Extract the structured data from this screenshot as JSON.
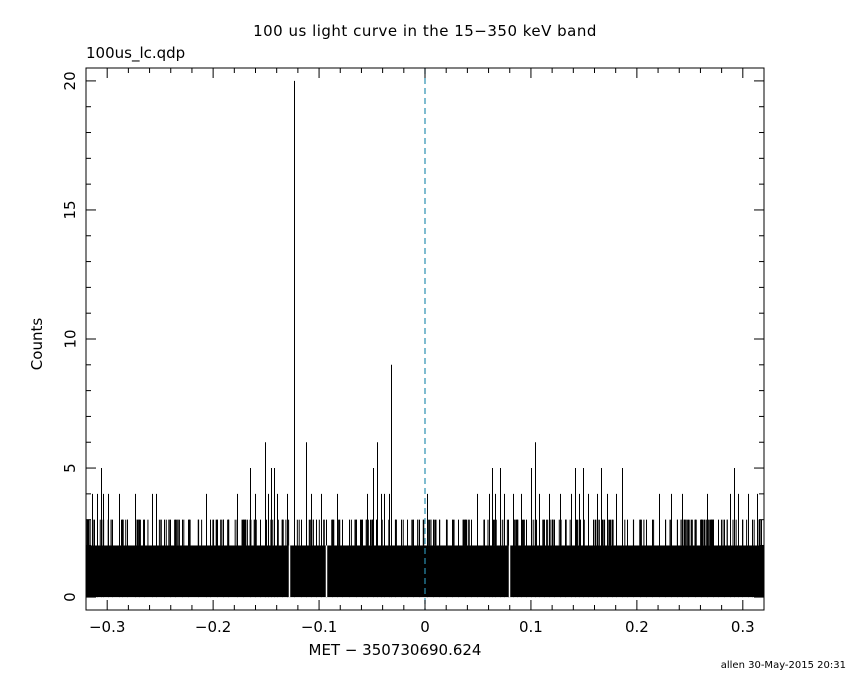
{
  "title": "100 us light curve in the 15−350 keV band",
  "file_label": "100us_lc.qdp",
  "footer": "allen 30-May-2015 20:31",
  "chart_data": {
    "type": "histogram-line",
    "xlabel": "MET − 350730690.624",
    "ylabel": "Counts",
    "xlim": [
      -0.32,
      0.32
    ],
    "ylim": [
      -0.5,
      20.5
    ],
    "xticks": [
      -0.3,
      -0.2,
      -0.1,
      0,
      0.1,
      0.2,
      0.3
    ],
    "xtick_labels": [
      "−0.3",
      "−0.2",
      "−0.1",
      "0",
      "0.1",
      "0.2",
      "0.3"
    ],
    "yticks": [
      0,
      5,
      10,
      15,
      20
    ],
    "ytick_labels": [
      "0",
      "5",
      "10",
      "15",
      "20"
    ],
    "bin_width": 0.0001,
    "baseline_band": [
      0,
      2
    ],
    "colors": {
      "axes": "#000000",
      "data": "#000000",
      "trigger_line": "#2a8fb0"
    },
    "trigger_line_x": 0,
    "peaks": [
      {
        "x": -0.3145,
        "y": 4
      },
      {
        "x": -0.3125,
        "y": 3
      },
      {
        "x": -0.3095,
        "y": 4
      },
      {
        "x": -0.306,
        "y": 5
      },
      {
        "x": -0.3035,
        "y": 4
      },
      {
        "x": -0.299,
        "y": 4
      },
      {
        "x": -0.2955,
        "y": 3
      },
      {
        "x": -0.289,
        "y": 4
      },
      {
        "x": -0.286,
        "y": 3
      },
      {
        "x": -0.281,
        "y": 3
      },
      {
        "x": -0.2735,
        "y": 4
      },
      {
        "x": -0.27,
        "y": 3
      },
      {
        "x": -0.265,
        "y": 3
      },
      {
        "x": -0.258,
        "y": 4
      },
      {
        "x": -0.2535,
        "y": 4
      },
      {
        "x": -0.246,
        "y": 3
      },
      {
        "x": -0.241,
        "y": 3
      },
      {
        "x": -0.236,
        "y": 3
      },
      {
        "x": -0.229,
        "y": 3
      },
      {
        "x": -0.224,
        "y": 3
      },
      {
        "x": -0.214,
        "y": 3
      },
      {
        "x": -0.207,
        "y": 4
      },
      {
        "x": -0.2025,
        "y": 3
      },
      {
        "x": -0.196,
        "y": 3
      },
      {
        "x": -0.191,
        "y": 3
      },
      {
        "x": -0.1855,
        "y": 3
      },
      {
        "x": -0.1775,
        "y": 4
      },
      {
        "x": -0.1715,
        "y": 3
      },
      {
        "x": -0.1655,
        "y": 5
      },
      {
        "x": -0.1605,
        "y": 4
      },
      {
        "x": -0.156,
        "y": 3
      },
      {
        "x": -0.1515,
        "y": 6
      },
      {
        "x": -0.1485,
        "y": 4
      },
      {
        "x": -0.1455,
        "y": 5
      },
      {
        "x": -0.1425,
        "y": 5
      },
      {
        "x": -0.1395,
        "y": 4
      },
      {
        "x": -0.135,
        "y": 3
      },
      {
        "x": -0.1305,
        "y": 4
      },
      {
        "x": -0.1235,
        "y": 20
      },
      {
        "x": -0.1175,
        "y": 3
      },
      {
        "x": -0.112,
        "y": 6
      },
      {
        "x": -0.1075,
        "y": 4
      },
      {
        "x": -0.103,
        "y": 3
      },
      {
        "x": -0.0985,
        "y": 4
      },
      {
        "x": -0.0935,
        "y": 3
      },
      {
        "x": -0.0875,
        "y": 3
      },
      {
        "x": -0.0835,
        "y": 4
      },
      {
        "x": -0.0785,
        "y": 3
      },
      {
        "x": -0.0715,
        "y": 3
      },
      {
        "x": -0.065,
        "y": 3
      },
      {
        "x": -0.059,
        "y": 3
      },
      {
        "x": -0.055,
        "y": 4
      },
      {
        "x": -0.0495,
        "y": 5
      },
      {
        "x": -0.0455,
        "y": 6
      },
      {
        "x": -0.042,
        "y": 4
      },
      {
        "x": -0.0385,
        "y": 4
      },
      {
        "x": -0.034,
        "y": 4
      },
      {
        "x": -0.0325,
        "y": 9
      },
      {
        "x": -0.028,
        "y": 3
      },
      {
        "x": -0.023,
        "y": 3
      },
      {
        "x": -0.017,
        "y": 3
      },
      {
        "x": -0.0115,
        "y": 3
      },
      {
        "x": -0.0055,
        "y": 3
      },
      {
        "x": 0.0015,
        "y": 4
      },
      {
        "x": 0.0075,
        "y": 3
      },
      {
        "x": 0.0135,
        "y": 3
      },
      {
        "x": 0.0195,
        "y": 3
      },
      {
        "x": 0.0255,
        "y": 3
      },
      {
        "x": 0.0315,
        "y": 3
      },
      {
        "x": 0.0375,
        "y": 3
      },
      {
        "x": 0.0435,
        "y": 3
      },
      {
        "x": 0.0495,
        "y": 4
      },
      {
        "x": 0.0555,
        "y": 3
      },
      {
        "x": 0.0605,
        "y": 4
      },
      {
        "x": 0.0635,
        "y": 5
      },
      {
        "x": 0.0665,
        "y": 4
      },
      {
        "x": 0.0705,
        "y": 5
      },
      {
        "x": 0.0745,
        "y": 4
      },
      {
        "x": 0.0785,
        "y": 3
      },
      {
        "x": 0.083,
        "y": 4
      },
      {
        "x": 0.0865,
        "y": 3
      },
      {
        "x": 0.0905,
        "y": 4
      },
      {
        "x": 0.095,
        "y": 3
      },
      {
        "x": 0.1005,
        "y": 5
      },
      {
        "x": 0.1035,
        "y": 6
      },
      {
        "x": 0.1075,
        "y": 4
      },
      {
        "x": 0.1125,
        "y": 3
      },
      {
        "x": 0.1175,
        "y": 4
      },
      {
        "x": 0.122,
        "y": 3
      },
      {
        "x": 0.1275,
        "y": 4
      },
      {
        "x": 0.1325,
        "y": 3
      },
      {
        "x": 0.1375,
        "y": 4
      },
      {
        "x": 0.1415,
        "y": 5
      },
      {
        "x": 0.1455,
        "y": 4
      },
      {
        "x": 0.1495,
        "y": 5
      },
      {
        "x": 0.154,
        "y": 4
      },
      {
        "x": 0.1585,
        "y": 3
      },
      {
        "x": 0.1625,
        "y": 4
      },
      {
        "x": 0.1665,
        "y": 5
      },
      {
        "x": 0.1715,
        "y": 4
      },
      {
        "x": 0.1765,
        "y": 3
      },
      {
        "x": 0.1805,
        "y": 4
      },
      {
        "x": 0.1855,
        "y": 5
      },
      {
        "x": 0.1905,
        "y": 3
      },
      {
        "x": 0.1965,
        "y": 3
      },
      {
        "x": 0.2025,
        "y": 3
      },
      {
        "x": 0.2085,
        "y": 3
      },
      {
        "x": 0.2145,
        "y": 3
      },
      {
        "x": 0.2205,
        "y": 4
      },
      {
        "x": 0.2265,
        "y": 3
      },
      {
        "x": 0.2325,
        "y": 4
      },
      {
        "x": 0.2375,
        "y": 3
      },
      {
        "x": 0.2425,
        "y": 4
      },
      {
        "x": 0.2485,
        "y": 3
      },
      {
        "x": 0.2545,
        "y": 3
      },
      {
        "x": 0.2605,
        "y": 3
      },
      {
        "x": 0.2665,
        "y": 4
      },
      {
        "x": 0.2715,
        "y": 3
      },
      {
        "x": 0.2765,
        "y": 3
      },
      {
        "x": 0.2825,
        "y": 3
      },
      {
        "x": 0.2875,
        "y": 4
      },
      {
        "x": 0.2915,
        "y": 5
      },
      {
        "x": 0.2955,
        "y": 4
      },
      {
        "x": 0.2995,
        "y": 3
      },
      {
        "x": 0.3045,
        "y": 4
      },
      {
        "x": 0.3085,
        "y": 3
      },
      {
        "x": 0.3135,
        "y": 4
      },
      {
        "x": 0.3175,
        "y": 3
      }
    ],
    "dropouts": [
      {
        "x": -0.1285,
        "y": 0
      },
      {
        "x": -0.0935,
        "y": 0
      },
      {
        "x": 0.079,
        "y": 0
      }
    ]
  }
}
